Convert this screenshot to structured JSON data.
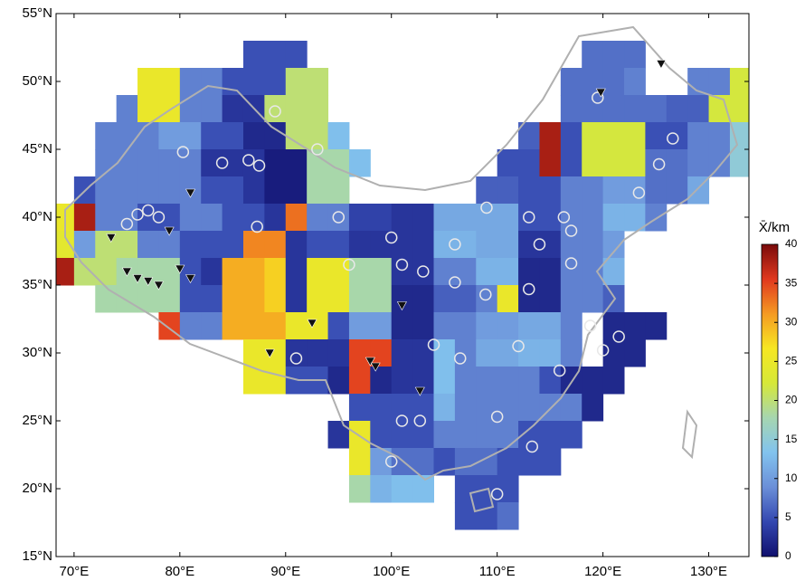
{
  "chart_data": {
    "type": "heatmap",
    "x": [
      69,
      71,
      73,
      75,
      77,
      79,
      81,
      83,
      85,
      87,
      89,
      91,
      93,
      95,
      97,
      99,
      101,
      103,
      105,
      107,
      109,
      111,
      113,
      115,
      117,
      119,
      121,
      123,
      125,
      127,
      129,
      131,
      133
    ],
    "y": [
      54,
      52,
      50,
      48,
      46,
      44,
      42,
      40,
      38,
      36,
      34,
      32,
      30,
      28,
      26,
      24,
      22,
      20,
      18,
      16
    ],
    "z": [
      [
        null,
        null,
        null,
        null,
        null,
        null,
        null,
        null,
        null,
        null,
        null,
        null,
        null,
        null,
        null,
        null,
        null,
        null,
        null,
        null,
        null,
        null,
        null,
        null,
        null,
        null,
        null,
        null,
        null,
        null,
        null,
        null,
        null
      ],
      [
        null,
        null,
        null,
        null,
        null,
        null,
        null,
        null,
        null,
        5,
        5,
        5,
        null,
        null,
        null,
        null,
        null,
        null,
        null,
        null,
        null,
        null,
        null,
        null,
        null,
        7,
        7,
        7,
        null,
        null,
        null,
        null,
        null
      ],
      [
        null,
        null,
        null,
        null,
        25,
        25,
        8,
        8,
        5,
        5,
        5,
        20,
        20,
        null,
        null,
        null,
        null,
        null,
        null,
        null,
        null,
        null,
        null,
        null,
        7,
        7,
        7,
        8,
        null,
        null,
        8,
        8,
        22
      ],
      [
        null,
        null,
        null,
        8,
        25,
        25,
        8,
        8,
        3,
        3,
        20,
        20,
        20,
        null,
        null,
        null,
        null,
        null,
        null,
        null,
        null,
        null,
        null,
        null,
        7,
        7,
        7,
        7,
        7,
        6,
        6,
        22,
        22
      ],
      [
        null,
        null,
        8,
        8,
        8,
        10,
        10,
        5,
        5,
        2,
        2,
        20,
        20,
        13,
        null,
        null,
        null,
        null,
        null,
        null,
        null,
        null,
        6,
        38,
        5,
        22,
        22,
        22,
        5,
        5,
        8,
        8,
        15
      ],
      [
        null,
        null,
        8,
        8,
        8,
        8,
        8,
        3,
        3,
        3,
        1,
        1,
        18,
        18,
        13,
        null,
        null,
        null,
        null,
        null,
        null,
        5,
        5,
        38,
        5,
        22,
        22,
        22,
        7,
        7,
        8,
        8,
        15
      ],
      [
        null,
        5,
        8,
        8,
        8,
        8,
        8,
        5,
        5,
        3,
        1,
        1,
        18,
        18,
        null,
        null,
        null,
        null,
        null,
        null,
        6,
        6,
        5,
        5,
        8,
        8,
        10,
        10,
        7,
        7,
        11,
        null,
        null
      ],
      [
        25,
        38,
        8,
        8,
        5,
        5,
        8,
        8,
        5,
        5,
        3,
        33,
        8,
        8,
        4,
        4,
        3,
        3,
        11,
        11,
        11,
        11,
        5,
        5,
        8,
        8,
        12,
        12,
        8,
        null,
        null,
        null,
        null
      ],
      [
        24,
        10,
        20,
        20,
        8,
        8,
        5,
        5,
        5,
        32,
        32,
        3,
        5,
        5,
        3,
        3,
        3,
        3,
        12,
        12,
        11,
        11,
        3,
        3,
        8,
        8,
        10,
        null,
        null,
        null,
        null,
        null,
        null
      ],
      [
        38,
        20,
        20,
        18,
        18,
        18,
        5,
        3,
        30,
        30,
        28,
        3,
        25,
        25,
        18,
        18,
        3,
        3,
        8,
        8,
        12,
        12,
        2,
        2,
        8,
        8,
        12,
        null,
        null,
        null,
        null,
        null,
        null
      ],
      [
        null,
        null,
        18,
        18,
        18,
        18,
        5,
        5,
        30,
        30,
        28,
        3,
        25,
        25,
        18,
        18,
        2,
        2,
        6,
        6,
        8,
        25,
        2,
        2,
        8,
        8,
        6,
        null,
        null,
        null,
        null,
        null,
        null
      ],
      [
        null,
        null,
        null,
        null,
        null,
        35,
        8,
        8,
        30,
        30,
        30,
        25,
        25,
        5,
        10,
        10,
        2,
        2,
        8,
        8,
        10,
        10,
        11,
        11,
        8,
        null,
        2,
        2,
        2,
        null,
        null,
        null,
        null
      ],
      [
        null,
        null,
        null,
        null,
        null,
        null,
        null,
        null,
        null,
        25,
        25,
        3,
        3,
        3,
        35,
        35,
        3,
        3,
        13,
        8,
        11,
        11,
        12,
        12,
        8,
        null,
        2,
        2,
        null,
        null,
        null,
        null,
        null
      ],
      [
        null,
        null,
        null,
        null,
        null,
        null,
        null,
        null,
        null,
        25,
        25,
        5,
        5,
        2,
        35,
        2,
        3,
        3,
        13,
        8,
        8,
        8,
        8,
        5,
        2,
        2,
        2,
        null,
        null,
        null,
        null,
        null,
        null
      ],
      [
        null,
        null,
        null,
        null,
        null,
        null,
        null,
        null,
        null,
        null,
        null,
        null,
        null,
        null,
        5,
        5,
        5,
        5,
        12,
        8,
        8,
        8,
        8,
        8,
        8,
        2,
        null,
        null,
        null,
        null,
        null,
        null,
        null
      ],
      [
        null,
        null,
        null,
        null,
        null,
        null,
        null,
        null,
        null,
        null,
        null,
        null,
        null,
        3,
        25,
        5,
        5,
        5,
        8,
        8,
        8,
        8,
        5,
        5,
        5,
        null,
        null,
        null,
        null,
        null,
        null,
        null,
        null
      ],
      [
        null,
        null,
        null,
        null,
        null,
        null,
        null,
        null,
        null,
        null,
        null,
        null,
        null,
        null,
        25,
        10,
        7,
        7,
        5,
        7,
        7,
        5,
        5,
        5,
        null,
        null,
        null,
        null,
        null,
        null,
        null,
        null,
        null
      ],
      [
        null,
        null,
        null,
        null,
        null,
        null,
        null,
        null,
        null,
        null,
        null,
        null,
        null,
        null,
        18,
        12,
        13,
        13,
        null,
        5,
        5,
        5,
        null,
        null,
        null,
        null,
        null,
        null,
        null,
        null,
        null,
        null,
        null
      ],
      [
        null,
        null,
        null,
        null,
        null,
        null,
        null,
        null,
        null,
        null,
        null,
        null,
        null,
        null,
        null,
        null,
        null,
        null,
        null,
        5,
        5,
        7,
        null,
        null,
        null,
        null,
        null,
        null,
        null,
        null,
        null,
        null,
        null
      ],
      [
        null,
        null,
        null,
        null,
        null,
        null,
        null,
        null,
        null,
        null,
        null,
        null,
        null,
        null,
        null,
        null,
        null,
        null,
        null,
        null,
        null,
        null,
        null,
        null,
        null,
        null,
        null,
        null,
        null,
        null,
        null,
        null,
        null
      ]
    ],
    "xlim": [
      68.3,
      133.8
    ],
    "ylim": [
      15,
      55
    ],
    "xticks": [
      {
        "value": 70,
        "label": "70°E"
      },
      {
        "value": 80,
        "label": "80°E"
      },
      {
        "value": 90,
        "label": "90°E"
      },
      {
        "value": 100,
        "label": "100°E"
      },
      {
        "value": 110,
        "label": "110°E"
      },
      {
        "value": 120,
        "label": "120°E"
      },
      {
        "value": 130,
        "label": "130°E"
      }
    ],
    "yticks": [
      {
        "value": 15,
        "label": "15°N"
      },
      {
        "value": 20,
        "label": "20°N"
      },
      {
        "value": 25,
        "label": "25°N"
      },
      {
        "value": 30,
        "label": "30°N"
      },
      {
        "value": 35,
        "label": "35°N"
      },
      {
        "value": 40,
        "label": "40°N"
      },
      {
        "value": 45,
        "label": "45°N"
      },
      {
        "value": 50,
        "label": "50°N"
      },
      {
        "value": 55,
        "label": "55°N"
      }
    ],
    "colorbar": {
      "label": "X̄/km",
      "lim": [
        0,
        40
      ],
      "ticks": [
        0,
        5,
        10,
        15,
        20,
        25,
        30,
        35,
        40
      ],
      "colors": [
        "#10106e",
        "#3347b0",
        "#6b8fd8",
        "#82c3ee",
        "#a6d6b0",
        "#d6e838",
        "#f6e722",
        "#f59a22",
        "#e0381e",
        "#7a0b0b"
      ]
    },
    "stations": {
      "color": "#e8e8e8",
      "lon": [
        80.3,
        84,
        86.5,
        87.5,
        75,
        76,
        77,
        78,
        89,
        93,
        96,
        100,
        101,
        103,
        106,
        106,
        113,
        116.3,
        117,
        114,
        113,
        117,
        118.8,
        120,
        121.5,
        113.3,
        110,
        104,
        102.7,
        101,
        106.5,
        108.9,
        112,
        115.9,
        125.3,
        126.6,
        123.4,
        119.5,
        110,
        100,
        91,
        87.3,
        95,
        109
      ],
      "lat": [
        44.8,
        44,
        44.2,
        43.8,
        39.5,
        40.2,
        40.5,
        40,
        47.8,
        45,
        36.5,
        38.5,
        36.5,
        36,
        38,
        35.2,
        40,
        40,
        39,
        38,
        34.7,
        36.6,
        32,
        30.2,
        31.2,
        23.1,
        25.3,
        30.6,
        25,
        25,
        29.6,
        34.3,
        30.5,
        28.7,
        43.9,
        45.8,
        41.8,
        48.8,
        19.6,
        22,
        29.6,
        39.3,
        40,
        40.7
      ]
    },
    "triangles": {
      "color": "#111111",
      "lon": [
        75,
        76,
        77,
        78,
        80,
        81,
        81,
        79,
        73.5,
        88.5,
        92.5,
        98,
        98.5,
        101,
        102.7,
        125.5,
        119.8
      ],
      "lat": [
        36,
        35.5,
        35.3,
        35,
        36.2,
        35.5,
        41.8,
        39,
        38.5,
        30,
        32.2,
        29.4,
        29,
        33.5,
        27.2,
        51.3,
        49.2
      ]
    }
  }
}
